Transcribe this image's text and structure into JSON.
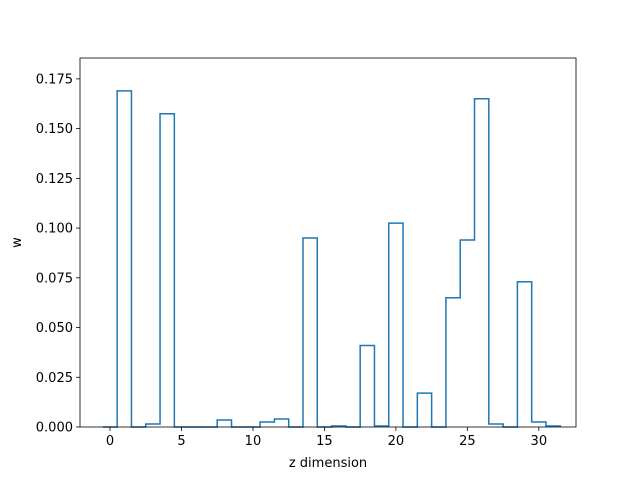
{
  "chart_data": {
    "type": "bar",
    "style": "step-histogram",
    "xlabel": "z dimension",
    "ylabel": "w",
    "xlim": [
      -2.1,
      32.6
    ],
    "ylim": [
      0,
      0.1855
    ],
    "x_ticks": [
      0,
      5,
      10,
      15,
      20,
      25,
      30
    ],
    "x_tick_labels": [
      "0",
      "5",
      "10",
      "15",
      "20",
      "25",
      "30"
    ],
    "y_ticks": [
      0,
      0.025,
      0.05,
      0.075,
      0.1,
      0.125,
      0.15,
      0.175
    ],
    "y_tick_labels": [
      "0.000",
      "0.025",
      "0.050",
      "0.075",
      "0.100",
      "0.125",
      "0.150",
      "0.175"
    ],
    "grid": false,
    "line_color": "#1f77b4",
    "categories": [
      0,
      1,
      2,
      3,
      4,
      5,
      6,
      7,
      8,
      9,
      10,
      11,
      12,
      13,
      14,
      15,
      16,
      17,
      18,
      19,
      20,
      21,
      22,
      23,
      24,
      25,
      26,
      27,
      28,
      29,
      30,
      31
    ],
    "values": [
      0.0,
      0.169,
      0.0,
      0.0015,
      0.1575,
      0.0,
      0.0,
      0.0,
      0.0035,
      0.0,
      0.0,
      0.0025,
      0.004,
      0.0,
      0.095,
      0.0,
      0.0005,
      0.0,
      0.041,
      0.0005,
      0.1025,
      0.0,
      0.017,
      0.0,
      0.065,
      0.094,
      0.165,
      0.0015,
      0.0,
      0.073,
      0.0025,
      0.0005
    ]
  }
}
